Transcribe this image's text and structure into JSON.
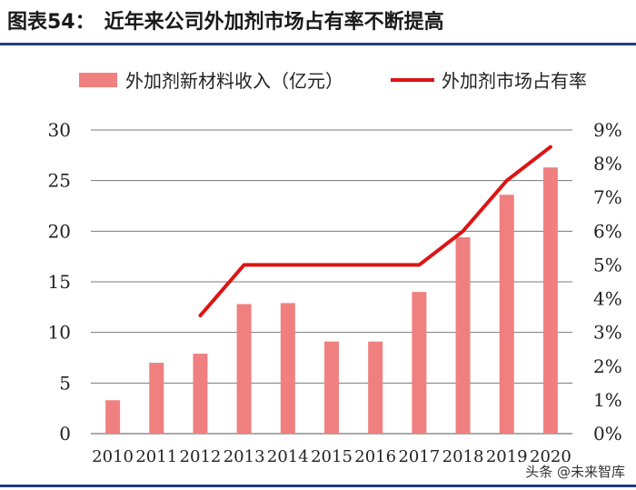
{
  "header": {
    "label": "图表54：",
    "text": "近年来公司外加剂市场占有率不断提高"
  },
  "watermark": "头条 @未来智库",
  "chart_data": {
    "type": "bar+line",
    "title": "近年来公司外加剂市场占有率不断提高",
    "categories": [
      "2010",
      "2011",
      "2012",
      "2013",
      "2014",
      "2015",
      "2016",
      "2017",
      "2018",
      "2019",
      "2020"
    ],
    "series": [
      {
        "name": "外加剂新材料收入（亿元）",
        "type": "bar",
        "axis": "left",
        "color": "#f08080",
        "values": [
          3.3,
          7.0,
          7.9,
          12.8,
          12.9,
          9.1,
          9.1,
          14.0,
          19.4,
          23.6,
          26.3
        ]
      },
      {
        "name": "外加剂市场占有率",
        "type": "line",
        "axis": "right",
        "color": "#dd1414",
        "values": [
          null,
          null,
          3.5,
          5.0,
          5.0,
          5.0,
          5.0,
          5.0,
          6.0,
          7.5,
          8.5
        ]
      }
    ],
    "y_left": {
      "min": 0,
      "max": 30,
      "ticks": [
        "0",
        "5",
        "10",
        "15",
        "20",
        "25",
        "30"
      ]
    },
    "y_right": {
      "min": 0,
      "max": 9,
      "ticks": [
        "0%",
        "1%",
        "2%",
        "3%",
        "4%",
        "5%",
        "6%",
        "7%",
        "8%",
        "9%"
      ]
    },
    "legend_position": "top",
    "gridlines": true
  }
}
